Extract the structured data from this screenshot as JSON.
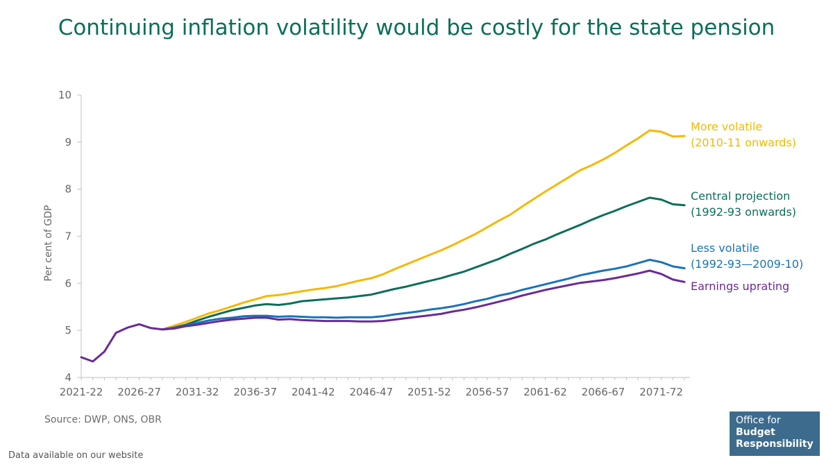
{
  "title": "Continuing inflation volatility would be costly for the state pension",
  "source": "Source: DWP, ONS, OBR",
  "website_note": "Data available on our website",
  "logo": {
    "line1": "Office for",
    "line2": "Budget",
    "line3": "Responsibility"
  },
  "chart_data": {
    "type": "line",
    "ylabel": "Per cent of GDP",
    "ylim": [
      4,
      10
    ],
    "yticks": [
      4,
      5,
      6,
      7,
      8,
      9,
      10
    ],
    "x_start_year": 2021,
    "x_end_year": 2073,
    "xtick_labels": [
      "2021-22",
      "2026-27",
      "2031-32",
      "2036-37",
      "2041-42",
      "2046-47",
      "2051-52",
      "2056-57",
      "2061-62",
      "2066-67",
      "2071-72"
    ],
    "grid": false,
    "series": [
      {
        "name": "More volatile (2010-11 onwards)",
        "label_lines": [
          "More volatile",
          "(2010-11 onwards)"
        ],
        "color": "#f5b800",
        "start_year": 2028,
        "values": [
          5.02,
          5.1,
          5.18,
          5.27,
          5.36,
          5.43,
          5.51,
          5.59,
          5.66,
          5.73,
          5.75,
          5.79,
          5.83,
          5.87,
          5.9,
          5.94,
          6.0,
          6.06,
          6.11,
          6.19,
          6.3,
          6.4,
          6.5,
          6.6,
          6.7,
          6.81,
          6.93,
          7.05,
          7.19,
          7.33,
          7.46,
          7.63,
          7.79,
          7.95,
          8.1,
          8.25,
          8.4,
          8.51,
          8.63,
          8.77,
          8.93,
          9.08,
          9.25,
          9.22,
          9.12,
          9.13
        ]
      },
      {
        "name": "Central projection (1992-93 onwards)",
        "label_lines": [
          "Central projection",
          "(1992-93 onwards)"
        ],
        "color": "#0c6e5a",
        "start_year": 2028,
        "values": [
          5.02,
          5.06,
          5.12,
          5.21,
          5.29,
          5.36,
          5.43,
          5.48,
          5.53,
          5.56,
          5.54,
          5.57,
          5.62,
          5.64,
          5.66,
          5.68,
          5.7,
          5.73,
          5.76,
          5.82,
          5.88,
          5.93,
          5.99,
          6.05,
          6.11,
          6.18,
          6.25,
          6.34,
          6.43,
          6.52,
          6.63,
          6.73,
          6.84,
          6.93,
          7.04,
          7.14,
          7.24,
          7.35,
          7.45,
          7.54,
          7.64,
          7.73,
          7.82,
          7.78,
          7.68,
          7.66
        ]
      },
      {
        "name": "Less volatile (1992-93—2009-10)",
        "label_lines": [
          "Less volatile",
          "(1992-93—2009-10)"
        ],
        "color": "#1a72b9",
        "start_year": 2028,
        "values": [
          5.02,
          5.05,
          5.1,
          5.16,
          5.21,
          5.25,
          5.27,
          5.3,
          5.31,
          5.31,
          5.29,
          5.3,
          5.29,
          5.28,
          5.28,
          5.27,
          5.28,
          5.28,
          5.28,
          5.3,
          5.34,
          5.37,
          5.4,
          5.44,
          5.47,
          5.51,
          5.56,
          5.62,
          5.67,
          5.74,
          5.79,
          5.86,
          5.92,
          5.98,
          6.04,
          6.1,
          6.17,
          6.22,
          6.27,
          6.31,
          6.36,
          6.43,
          6.5,
          6.45,
          6.36,
          6.32
        ]
      },
      {
        "name": "Earnings uprating",
        "label_lines": [
          "Earnings uprating"
        ],
        "color": "#6a2a96",
        "start_year": 2021,
        "values": [
          4.43,
          4.34,
          4.55,
          4.95,
          5.06,
          5.13,
          5.05,
          5.02,
          5.04,
          5.09,
          5.12,
          5.16,
          5.2,
          5.23,
          5.25,
          5.27,
          5.27,
          5.23,
          5.24,
          5.22,
          5.21,
          5.2,
          5.2,
          5.2,
          5.19,
          5.19,
          5.2,
          5.23,
          5.26,
          5.29,
          5.32,
          5.35,
          5.4,
          5.44,
          5.49,
          5.55,
          5.61,
          5.67,
          5.74,
          5.8,
          5.86,
          5.91,
          5.96,
          6.01,
          6.04,
          6.07,
          6.11,
          6.16,
          6.21,
          6.27,
          6.2,
          6.08,
          6.03
        ]
      }
    ]
  }
}
